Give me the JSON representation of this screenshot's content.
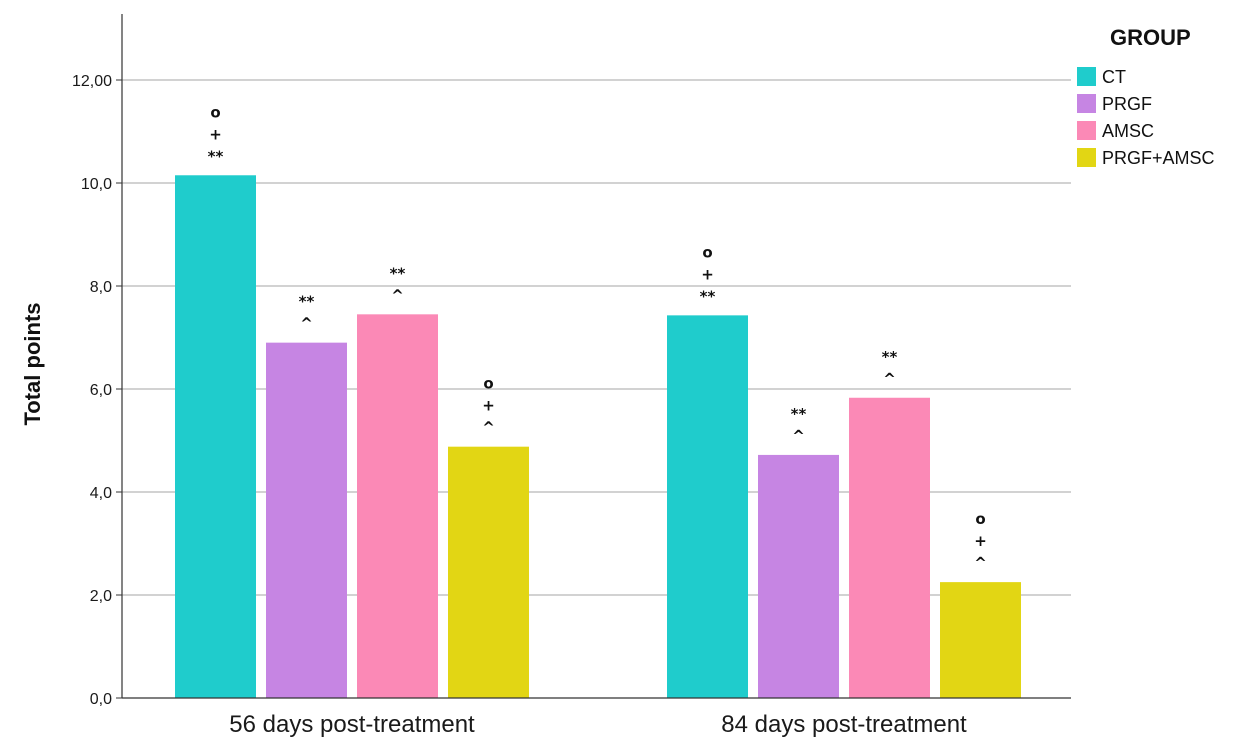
{
  "chart_data": {
    "type": "bar",
    "title": "",
    "xlabel": "",
    "ylabel": "Total points",
    "ylim": [
      0,
      13.2
    ],
    "yticks": [
      "0,0",
      "2,0",
      "4,0",
      "6,0",
      "8,0",
      "10,0",
      "12,00"
    ],
    "ytick_values": [
      0,
      2,
      4,
      6,
      8,
      10,
      12
    ],
    "categories": [
      "56 days post-treatment",
      "84 days post-treatment"
    ],
    "legend_title": "GROUP",
    "legend_position": "top-right",
    "grid": true,
    "series": [
      {
        "name": "CT",
        "color": "#1fcccc",
        "values": [
          10.15,
          7.43
        ],
        "annotations": [
          [
            "o",
            "+",
            "**"
          ],
          [
            "o",
            "+",
            "**"
          ]
        ]
      },
      {
        "name": "PRGF",
        "color": "#c685e3",
        "values": [
          6.9,
          4.72
        ],
        "annotations": [
          [
            "**",
            "^"
          ],
          [
            "**",
            "^"
          ]
        ]
      },
      {
        "name": "AMSC",
        "color": "#fb89b6",
        "values": [
          7.45,
          5.83
        ],
        "annotations": [
          [
            "**",
            "^"
          ],
          [
            "**",
            "^"
          ]
        ]
      },
      {
        "name": "PRGF+AMSC",
        "color": "#e2d614",
        "values": [
          4.88,
          2.25
        ],
        "annotations": [
          [
            "o",
            "+",
            "^"
          ],
          [
            "o",
            "+",
            "^"
          ]
        ]
      }
    ]
  }
}
